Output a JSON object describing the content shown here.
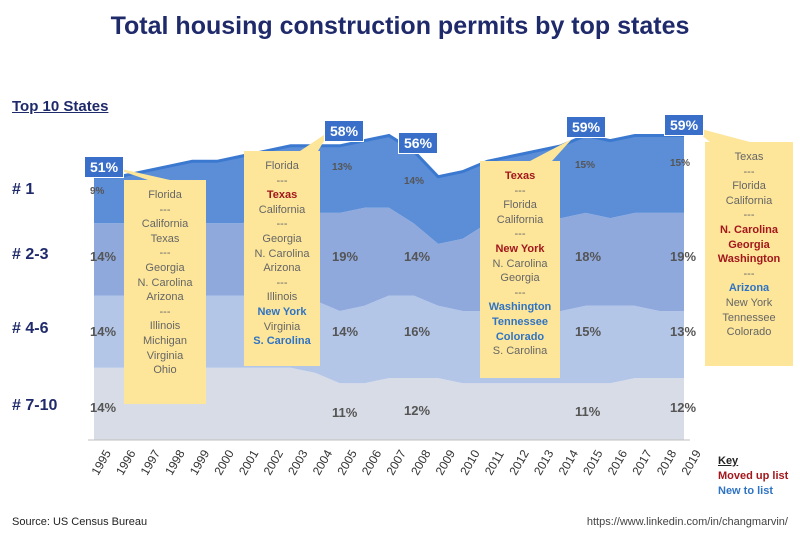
{
  "title": "Total housing construction permits by top states",
  "top10_label": "Top 10 States",
  "ranks": [
    "# 1",
    "# 2-3",
    "# 4-6",
    "# 7-10"
  ],
  "chart_data": {
    "type": "area",
    "x": [
      "1995",
      "1996",
      "1997",
      "1998",
      "1999",
      "2000",
      "2001",
      "2002",
      "2003",
      "2004",
      "2005",
      "2006",
      "2007",
      "2008",
      "2009",
      "2010",
      "2011",
      "2012",
      "2013",
      "2014",
      "2015",
      "2016",
      "2017",
      "2018",
      "2019"
    ],
    "series": [
      {
        "name": "# 7-10",
        "values": [
          14,
          14,
          14,
          14,
          14,
          14,
          14,
          14,
          14,
          13,
          11,
          11,
          12,
          12,
          12,
          11,
          11,
          11,
          11,
          11,
          11,
          11,
          12,
          12,
          12
        ]
      },
      {
        "name": "# 4-6",
        "values": [
          14,
          14,
          14,
          14,
          14,
          14,
          14,
          14,
          14,
          14,
          14,
          15,
          16,
          16,
          14,
          14,
          14,
          14,
          14,
          14,
          15,
          15,
          14,
          13,
          13
        ]
      },
      {
        "name": "# 2-3",
        "values": [
          14,
          14,
          14,
          14,
          14,
          14,
          14,
          15,
          16,
          17,
          19,
          19,
          17,
          14,
          12,
          14,
          17,
          18,
          18,
          18,
          18,
          17,
          18,
          19,
          19
        ]
      },
      {
        "name": "# 1",
        "values": [
          9,
          9,
          10,
          11,
          12,
          12,
          13,
          13,
          13,
          13,
          13,
          13,
          14,
          14,
          13,
          13,
          12,
          12,
          13,
          14,
          15,
          15,
          15,
          15,
          15
        ]
      }
    ],
    "totals_labeled": [
      {
        "x": "1995",
        "label": "51%"
      },
      {
        "x": "2005",
        "label": "58%"
      },
      {
        "x": "2008",
        "label": "56%"
      },
      {
        "x": "2015",
        "label": "59%"
      },
      {
        "x": "2019",
        "label": "59%"
      }
    ],
    "segment_labels": [
      {
        "x": "1995",
        "labels": [
          "14%",
          "14%",
          "14%",
          "9%"
        ]
      },
      {
        "x": "2005",
        "labels": [
          "11%",
          "14%",
          "19%",
          "13%"
        ]
      },
      {
        "x": "2008",
        "labels": [
          "12%",
          "16%",
          "14%",
          "14%"
        ]
      },
      {
        "x": "2015",
        "labels": [
          "11%",
          "15%",
          "18%",
          "15%"
        ]
      },
      {
        "x": "2019",
        "labels": [
          "12%",
          "13%",
          "19%",
          "15%"
        ]
      }
    ],
    "ylim": [
      0,
      62
    ],
    "colors": {
      "rank_7_10": "#d8dce6",
      "rank_4_6": "#b3c6e8",
      "rank_2_3": "#8fa9dd",
      "rank_1": "#5b8ed7",
      "outline": "#3b78cf"
    }
  },
  "notes": [
    {
      "lines": [
        {
          "t": "Florida",
          "s": "gray"
        },
        {
          "t": "---",
          "s": "gray"
        },
        {
          "t": "California",
          "s": "gray"
        },
        {
          "t": "Texas",
          "s": "gray"
        },
        {
          "t": "---",
          "s": "gray"
        },
        {
          "t": "Georgia",
          "s": "gray"
        },
        {
          "t": "N. Carolina",
          "s": "gray"
        },
        {
          "t": "Arizona",
          "s": "gray"
        },
        {
          "t": "---",
          "s": "gray"
        },
        {
          "t": "Illinois",
          "s": "gray"
        },
        {
          "t": "Michigan",
          "s": "gray"
        },
        {
          "t": "Virginia",
          "s": "gray"
        },
        {
          "t": "Ohio",
          "s": "gray"
        }
      ]
    },
    {
      "lines": [
        {
          "t": "Florida",
          "s": "gray"
        },
        {
          "t": "---",
          "s": "gray"
        },
        {
          "t": "Texas",
          "s": "red"
        },
        {
          "t": "California",
          "s": "gray"
        },
        {
          "t": "---",
          "s": "gray"
        },
        {
          "t": "Georgia",
          "s": "gray"
        },
        {
          "t": "N. Carolina",
          "s": "gray"
        },
        {
          "t": "Arizona",
          "s": "gray"
        },
        {
          "t": "---",
          "s": "gray"
        },
        {
          "t": "Illinois",
          "s": "gray"
        },
        {
          "t": "New York",
          "s": "blue"
        },
        {
          "t": "Virginia",
          "s": "gray"
        },
        {
          "t": "S. Carolina",
          "s": "blue"
        }
      ]
    },
    {
      "lines": [
        {
          "t": "Texas",
          "s": "red"
        },
        {
          "t": "---",
          "s": "gray"
        },
        {
          "t": "Florida",
          "s": "gray"
        },
        {
          "t": "California",
          "s": "gray"
        },
        {
          "t": "---",
          "s": "gray"
        },
        {
          "t": "New York",
          "s": "red"
        },
        {
          "t": "N. Carolina",
          "s": "gray"
        },
        {
          "t": "Georgia",
          "s": "gray"
        },
        {
          "t": "---",
          "s": "gray"
        },
        {
          "t": "Washington",
          "s": "blue"
        },
        {
          "t": "Tennessee",
          "s": "blue"
        },
        {
          "t": "Colorado",
          "s": "blue"
        },
        {
          "t": "S. Carolina",
          "s": "gray"
        }
      ]
    },
    {
      "lines": [
        {
          "t": "Texas",
          "s": "gray"
        },
        {
          "t": "---",
          "s": "gray"
        },
        {
          "t": "Florida",
          "s": "gray"
        },
        {
          "t": "California",
          "s": "gray"
        },
        {
          "t": "---",
          "s": "gray"
        },
        {
          "t": "N. Carolina",
          "s": "red"
        },
        {
          "t": "Georgia",
          "s": "red"
        },
        {
          "t": "Washington",
          "s": "red"
        },
        {
          "t": "---",
          "s": "gray"
        },
        {
          "t": "Arizona",
          "s": "blue"
        },
        {
          "t": "New York",
          "s": "gray"
        },
        {
          "t": "Tennessee",
          "s": "gray"
        },
        {
          "t": "Colorado",
          "s": "gray"
        }
      ]
    }
  ],
  "key": {
    "title": "Key",
    "moved_up": "Moved up list",
    "new": "New to list"
  },
  "source": "Source: US Census Bureau",
  "url": "https://www.linkedin.com/in/changmarvin/"
}
